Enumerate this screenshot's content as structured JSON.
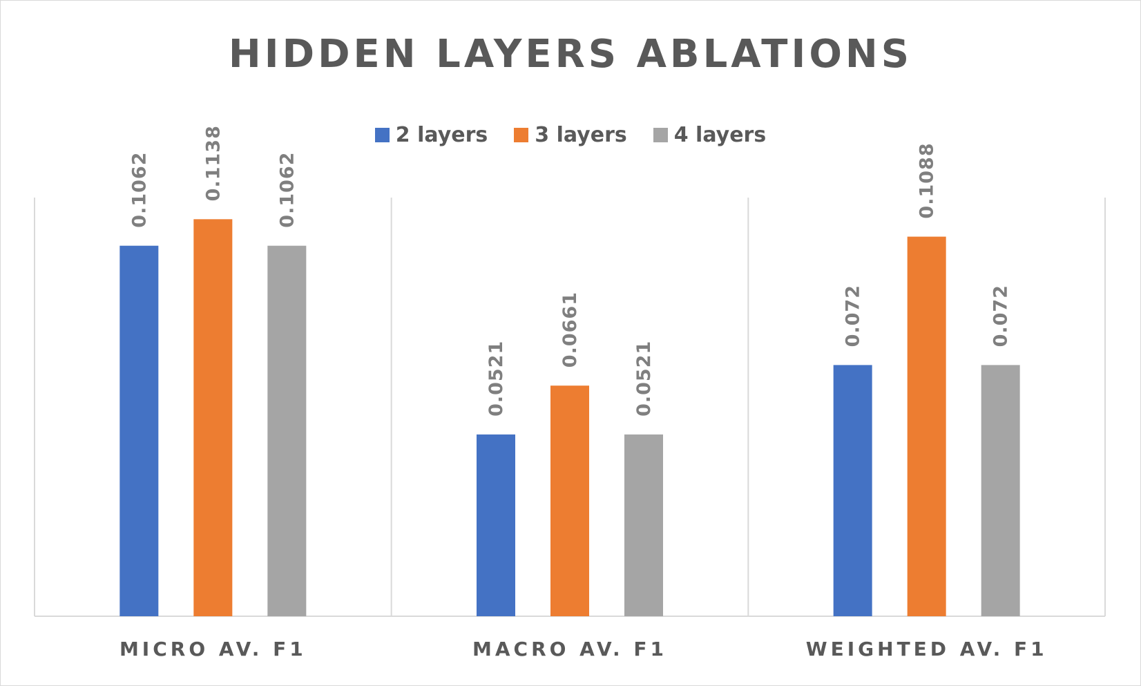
{
  "chart_data": {
    "type": "bar",
    "title": "HIDDEN LAYERS ABLATIONS",
    "categories": [
      "MICRO AV. F1",
      "MACRO AV. F1",
      "WEIGHTED AV. F1"
    ],
    "series": [
      {
        "name": "2 layers",
        "color": "#4472c4",
        "values": [
          0.1062,
          0.0521,
          0.072
        ],
        "labels": [
          "0.1062",
          "0.0521",
          "0.072"
        ]
      },
      {
        "name": "3 layers",
        "color": "#ed7d31",
        "values": [
          0.1138,
          0.0661,
          0.1088
        ],
        "labels": [
          "0.1138",
          "0.0661",
          "0.1088"
        ]
      },
      {
        "name": "4 layers",
        "color": "#a5a5a5",
        "values": [
          0.1062,
          0.0521,
          0.072
        ],
        "labels": [
          "0.1062",
          "0.0521",
          "0.072"
        ]
      }
    ],
    "xlabel": "",
    "ylabel": "",
    "ylim": [
      0,
      0.12
    ],
    "grid": "vertical-category-separators",
    "legend_position": "top",
    "data_labels": "rotated-vertical"
  }
}
